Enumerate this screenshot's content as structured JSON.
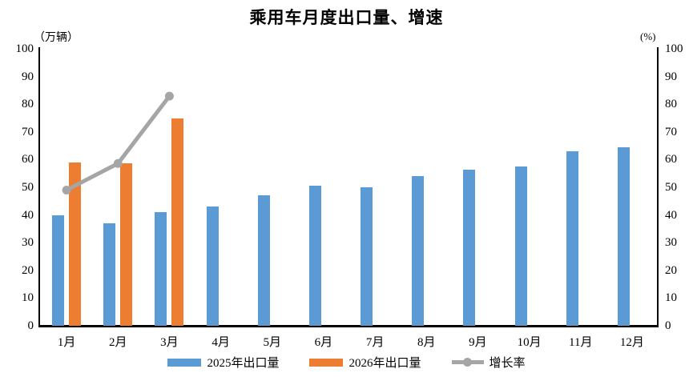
{
  "title": "乘用车月度出口量、增速",
  "left_axis": {
    "unit": "（万辆）",
    "ticks": [
      100,
      90,
      80,
      70,
      60,
      50,
      40,
      30,
      20,
      10,
      0
    ]
  },
  "right_axis": {
    "unit": "(%)",
    "ticks": [
      100,
      90,
      80,
      70,
      60,
      50,
      40,
      30,
      20,
      10,
      0
    ]
  },
  "chart_data": {
    "type": "combo-bar-line",
    "title": "乘用车月度出口量、增速",
    "categories": [
      "1月",
      "2月",
      "3月",
      "4月",
      "5月",
      "6月",
      "7月",
      "8月",
      "9月",
      "10月",
      "11月",
      "12月"
    ],
    "series": [
      {
        "name": "2025年出口量",
        "type": "bar",
        "axis": "left",
        "color": "#5B9BD5",
        "values": [
          40,
          37,
          41,
          43,
          47,
          50.5,
          50,
          54,
          56.5,
          57.5,
          63,
          64.5
        ]
      },
      {
        "name": "2026年出口量",
        "type": "bar",
        "axis": "left",
        "color": "#ED7D31",
        "values": [
          59,
          58.6,
          75,
          null,
          null,
          null,
          null,
          null,
          null,
          null,
          null,
          null
        ]
      },
      {
        "name": "增长率",
        "type": "line",
        "axis": "right",
        "color": "#A5A5A5",
        "values": [
          49,
          58.6,
          82.9,
          null,
          null,
          null,
          null,
          null,
          null,
          null,
          null,
          null
        ]
      }
    ],
    "ylim_left": [
      0,
      100
    ],
    "ylim_right": [
      0,
      100
    ],
    "left_unit": "万辆",
    "right_unit": "%",
    "grid": false,
    "legend_position": "bottom",
    "axis_color": "#000000",
    "background_color": "#FFFFFF"
  }
}
